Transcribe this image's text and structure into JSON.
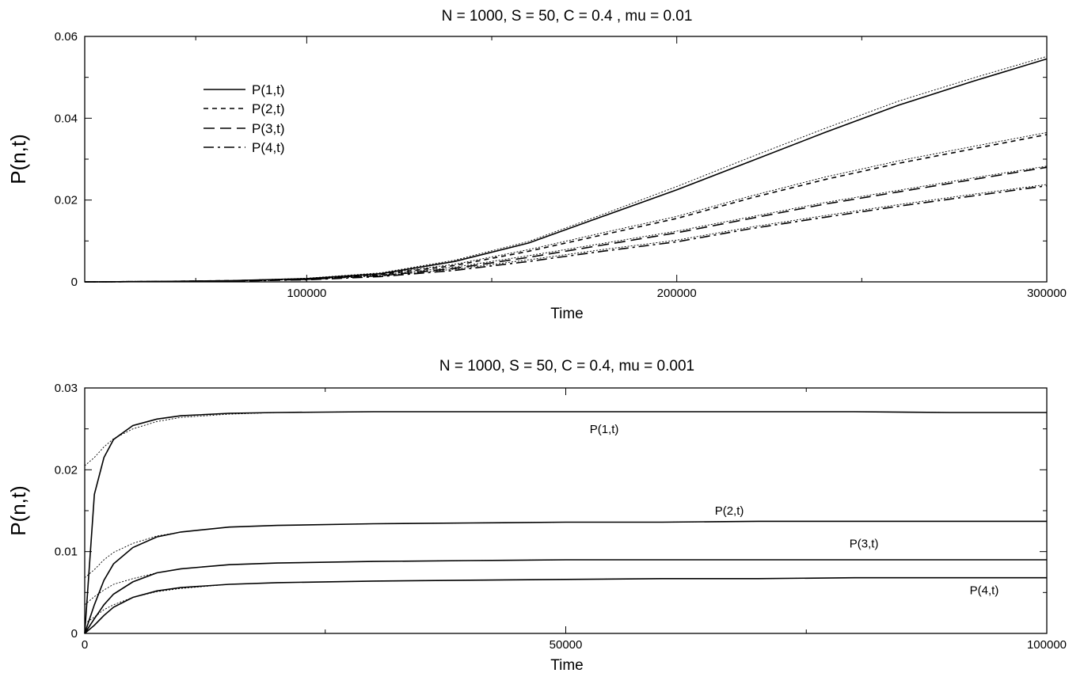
{
  "chart_data": [
    {
      "type": "line",
      "title": "N = 1000, S = 50, C = 0.4 , mu = 0.01",
      "xlabel": "Time",
      "ylabel": "P(n,t)",
      "xlim": [
        40000,
        300000
      ],
      "ylim": [
        0,
        0.06
      ],
      "xticks": [
        100000,
        200000,
        300000
      ],
      "xtick_labels": [
        "100000",
        "200000",
        "300000"
      ],
      "yticks": [
        0,
        0.02,
        0.04,
        0.06
      ],
      "ytick_labels": [
        "0",
        "0.02",
        "0.04",
        "0.06"
      ],
      "grid": false,
      "legend": {
        "placement": "top-left",
        "entries": [
          {
            "label": "P(1,t)",
            "style": "solid"
          },
          {
            "label": "P(2,t)",
            "style": "short-dash"
          },
          {
            "label": "P(3,t)",
            "style": "long-dash"
          },
          {
            "label": "P(4,t)",
            "style": "dash-dot"
          }
        ]
      },
      "x": [
        40000,
        60000,
        80000,
        100000,
        120000,
        140000,
        160000,
        180000,
        200000,
        220000,
        240000,
        260000,
        280000,
        300000
      ],
      "series": [
        {
          "name": "P(1,t)",
          "style": "solid",
          "values": [
            0.0,
            0.0001,
            0.0003,
            0.0008,
            0.002,
            0.005,
            0.0095,
            0.016,
            0.0225,
            0.0295,
            0.0365,
            0.0432,
            0.049,
            0.0545
          ]
        },
        {
          "name": "P(2,t)",
          "style": "short-dash",
          "values": [
            0.0,
            0.0001,
            0.0003,
            0.0007,
            0.0018,
            0.004,
            0.0075,
            0.0115,
            0.0155,
            0.0205,
            0.025,
            0.029,
            0.0325,
            0.036
          ]
        },
        {
          "name": "P(3,t)",
          "style": "long-dash",
          "values": [
            0.0,
            0.0001,
            0.0002,
            0.0006,
            0.0015,
            0.0033,
            0.006,
            0.009,
            0.012,
            0.0155,
            0.019,
            0.022,
            0.025,
            0.028
          ]
        },
        {
          "name": "P(4,t)",
          "style": "dash-dot",
          "values": [
            0.0,
            0.0001,
            0.0002,
            0.0005,
            0.0013,
            0.0028,
            0.005,
            0.0075,
            0.0098,
            0.013,
            0.0158,
            0.0185,
            0.021,
            0.0235
          ]
        }
      ],
      "fits": [
        {
          "values": [
            0.0,
            0.0001,
            0.0003,
            0.0009,
            0.0022,
            0.0053,
            0.0099,
            0.0165,
            0.0233,
            0.0305,
            0.0375,
            0.0442,
            0.0498,
            0.0551
          ]
        },
        {
          "values": [
            0.0,
            0.0001,
            0.0003,
            0.0008,
            0.002,
            0.0043,
            0.0079,
            0.012,
            0.016,
            0.021,
            0.0256,
            0.0296,
            0.0331,
            0.0365
          ]
        },
        {
          "values": [
            0.0,
            0.0001,
            0.0002,
            0.0007,
            0.0017,
            0.0036,
            0.0064,
            0.0094,
            0.0124,
            0.0159,
            0.0194,
            0.0224,
            0.0254,
            0.0283
          ]
        },
        {
          "values": [
            0.0,
            0.0001,
            0.0002,
            0.0006,
            0.0015,
            0.0031,
            0.0054,
            0.0079,
            0.0102,
            0.0134,
            0.0162,
            0.0189,
            0.0214,
            0.0238
          ]
        }
      ]
    },
    {
      "type": "line",
      "title": "N  = 1000, S = 50, C = 0.4, mu = 0.001",
      "xlabel": "Time",
      "ylabel": "P(n,t)",
      "xlim": [
        0,
        100000
      ],
      "ylim": [
        0,
        0.03
      ],
      "xticks": [
        0,
        50000,
        100000
      ],
      "xtick_labels": [
        "0",
        "50000",
        "100000"
      ],
      "yticks": [
        0,
        0.01,
        0.02,
        0.03
      ],
      "ytick_labels": [
        "0",
        "0.01",
        "0.02",
        "0.03"
      ],
      "grid": false,
      "x": [
        0,
        1000,
        2000,
        3000,
        5000,
        7500,
        10000,
        15000,
        20000,
        30000,
        40000,
        50000,
        60000,
        70000,
        80000,
        90000,
        100000
      ],
      "series": [
        {
          "name": "P(1,t)",
          "style": "solid",
          "values": [
            0.0,
            0.017,
            0.0215,
            0.0237,
            0.0254,
            0.0262,
            0.0266,
            0.0269,
            0.027,
            0.0271,
            0.0271,
            0.0271,
            0.0271,
            0.0271,
            0.0271,
            0.027,
            0.027
          ]
        },
        {
          "name": "P(2,t)",
          "style": "solid",
          "values": [
            0.0,
            0.0035,
            0.0065,
            0.0085,
            0.0105,
            0.0118,
            0.0124,
            0.013,
            0.0132,
            0.0134,
            0.0135,
            0.0136,
            0.0136,
            0.0137,
            0.0137,
            0.0137,
            0.0137
          ]
        },
        {
          "name": "P(3,t)",
          "style": "solid",
          "values": [
            0.0,
            0.0018,
            0.0035,
            0.0048,
            0.0063,
            0.0074,
            0.0079,
            0.0084,
            0.0086,
            0.0088,
            0.0089,
            0.009,
            0.009,
            0.009,
            0.009,
            0.009,
            0.009
          ]
        },
        {
          "name": "P(4,t)",
          "style": "solid",
          "values": [
            0.0,
            0.001,
            0.0022,
            0.0032,
            0.0044,
            0.0052,
            0.0056,
            0.006,
            0.0062,
            0.0064,
            0.0065,
            0.0066,
            0.0067,
            0.0067,
            0.0068,
            0.0068,
            0.0068
          ]
        }
      ],
      "fits": [
        {
          "values": [
            0.0205,
            0.0215,
            0.0228,
            0.0238,
            0.025,
            0.0259,
            0.0264,
            0.0268,
            0.027,
            0.0271,
            0.0271,
            0.0271,
            0.0271,
            0.0271,
            0.0271,
            0.027,
            0.027
          ]
        },
        {
          "values": [
            0.0068,
            0.0078,
            0.009,
            0.0099,
            0.011,
            0.0119,
            0.0124,
            0.013,
            0.0132,
            0.0134,
            0.0135,
            0.0136,
            0.0136,
            0.0137,
            0.0137,
            0.0137,
            0.0137
          ]
        },
        {
          "values": [
            0.0035,
            0.0045,
            0.0053,
            0.006,
            0.0067,
            0.0074,
            0.0079,
            0.0084,
            0.0086,
            0.0088,
            0.0089,
            0.009,
            0.009,
            0.009,
            0.009,
            0.009,
            0.009
          ]
        },
        {
          "values": [
            0.0012,
            0.002,
            0.0029,
            0.0035,
            0.0044,
            0.0051,
            0.0055,
            0.006,
            0.0062,
            0.0064,
            0.0065,
            0.0066,
            0.0067,
            0.0067,
            0.0068,
            0.0068,
            0.0068
          ]
        }
      ],
      "annotations": [
        {
          "text": "P(1,t)",
          "x": 54000,
          "y": 0.0245
        },
        {
          "text": "P(2,t)",
          "x": 67000,
          "y": 0.0145
        },
        {
          "text": "P(3,t)",
          "x": 81000,
          "y": 0.0105
        },
        {
          "text": "P(4,t)",
          "x": 93500,
          "y": 0.0048
        }
      ]
    }
  ]
}
